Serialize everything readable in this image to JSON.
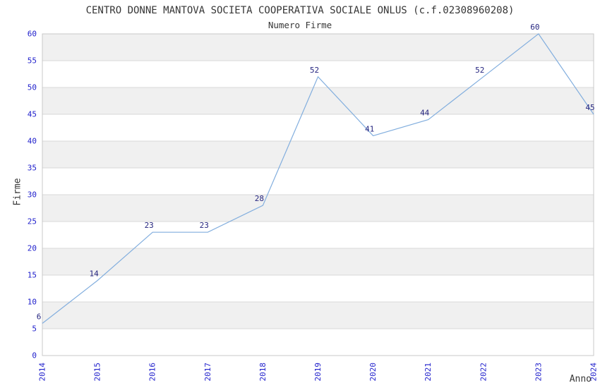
{
  "chart_data": {
    "type": "line",
    "title": "CENTRO DONNE MANTOVA SOCIETA COOPERATIVA SOCIALE ONLUS (c.f.02308960208)",
    "subtitle": "Numero Firme",
    "xlabel": "Anno",
    "ylabel": "Firme",
    "categories": [
      "2014",
      "2015",
      "2016",
      "2017",
      "2018",
      "2019",
      "2020",
      "2021",
      "2022",
      "2023",
      "2024"
    ],
    "values": [
      6,
      14,
      23,
      23,
      28,
      52,
      41,
      44,
      52,
      60,
      45
    ],
    "ylim": [
      0,
      60
    ],
    "yticks": [
      0,
      5,
      10,
      15,
      20,
      25,
      30,
      35,
      40,
      45,
      50,
      55,
      60
    ],
    "grid": true,
    "legend": false,
    "colors": {
      "line": "#82aede",
      "point_label": "#262680",
      "tick_label": "#2121cc",
      "band": "#f0f0f0",
      "grid_line": "#d8d8d8",
      "plot_border": "#c8c8c8",
      "text": "#363636",
      "background": "#ffffff"
    }
  }
}
